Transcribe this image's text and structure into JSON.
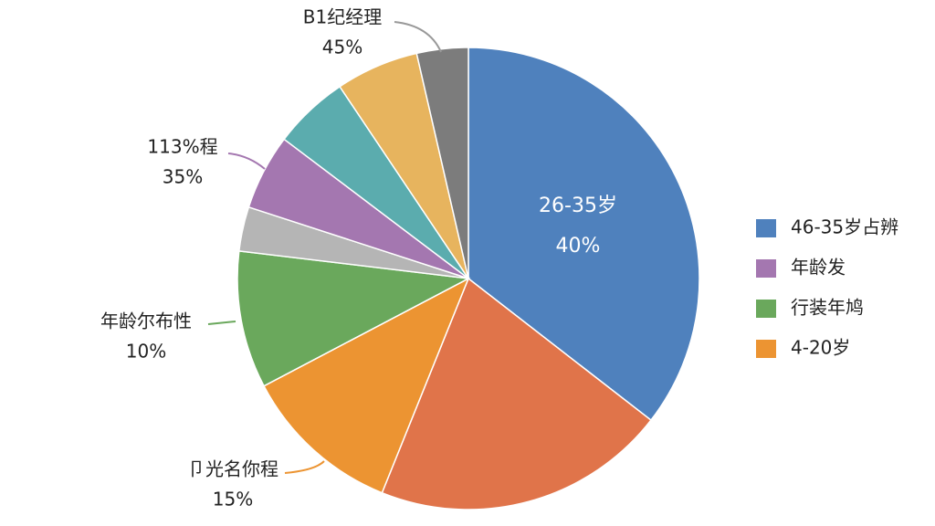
{
  "chart_data": {
    "type": "pie",
    "values": [
      35.5,
      20.6,
      11.2,
      9.6,
      3.1,
      5.3,
      5.3,
      5.8,
      3.6
    ],
    "colors": [
      "#4f81bd",
      "#e0744a",
      "#ec9432",
      "#6aa85c",
      "#b5b5b5",
      "#a477b0",
      "#5bacae",
      "#e7b45e",
      "#7c7c7c"
    ],
    "inner_label": [
      "26-35岁",
      "40%"
    ],
    "annotations": [
      {
        "lines": [
          "B1纪经理",
          "45%"
        ],
        "color": "#999999"
      },
      {
        "lines": [
          "113%程",
          "35%"
        ],
        "color": "#a477b0"
      },
      {
        "lines": [
          "年龄尔布性",
          "10%"
        ],
        "color": "#6aa85c"
      },
      {
        "lines": [
          "卩光名你程",
          "15%"
        ],
        "color": "#ec9432"
      }
    ],
    "legend": [
      {
        "label": "46-35岁占辨",
        "color": "#4f81bd"
      },
      {
        "label": "年龄发",
        "color": "#a477b0"
      },
      {
        "label": "行装年鸠",
        "color": "#6aa85c"
      },
      {
        "label": "4-20岁",
        "color": "#ec9432"
      }
    ]
  }
}
